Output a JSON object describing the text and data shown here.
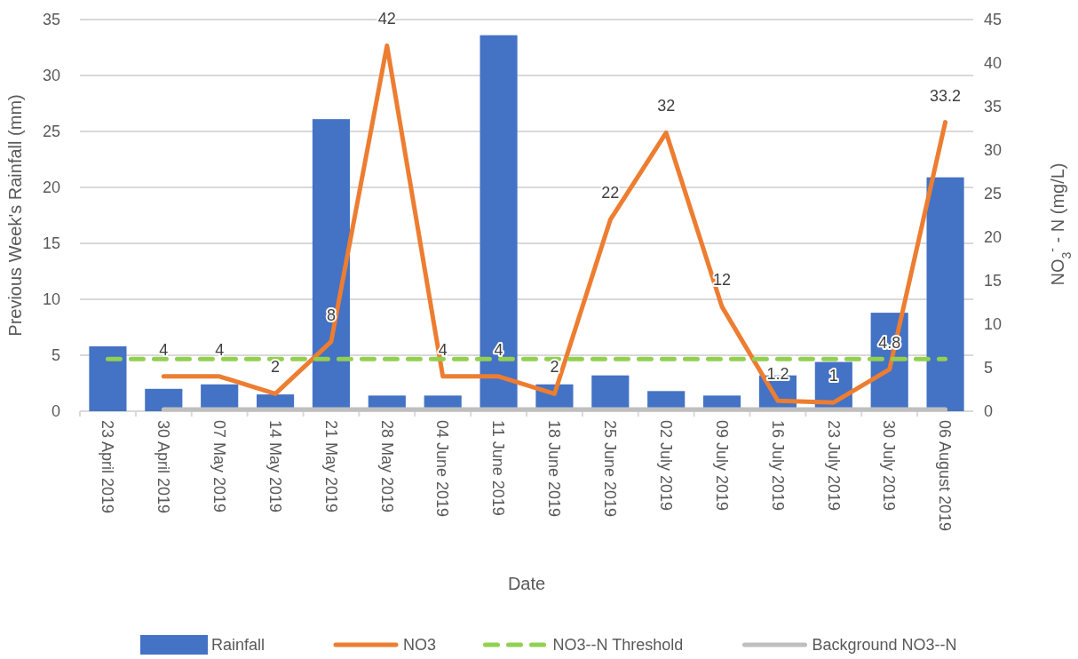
{
  "chart_data": {
    "type": "bar",
    "xlabel": "Date",
    "ylabel": "Previous Week's Rainfall (mm)",
    "y2label": "NO$_{3}$$^{-}$ - N (mg/L)",
    "categories": [
      "23 April 2019",
      "30 April 2019",
      "07 May 2019",
      "14 May 2019",
      "21 May 2019",
      "28 May 2019",
      "04 June 2019",
      "11 June 2019",
      "18 June 2019",
      "25 June 2019",
      "02 July 2019",
      "09 July 2019",
      "16 July 2019",
      "23 July 2019",
      "30 July 2019",
      "06 August 2019"
    ],
    "series": [
      {
        "name": "Rainfall",
        "color": "#4472c4",
        "values": [
          5.8,
          2.0,
          2.4,
          1.5,
          26.1,
          1.4,
          1.4,
          33.6,
          2.4,
          3.2,
          1.8,
          1.4,
          3.2,
          4.4,
          8.8,
          20.9
        ]
      },
      {
        "name": "NO3",
        "type": "line",
        "axis": "y2",
        "color": "#ed7d31",
        "line_style": "solid",
        "values": [
          null,
          4,
          4,
          2,
          8,
          42,
          4,
          4,
          2,
          22,
          32,
          12,
          1.2,
          1,
          4.8,
          33.2
        ],
        "value_labels": [
          null,
          "4",
          "4",
          "2",
          "8",
          "42",
          "4",
          "4",
          "2",
          "22",
          "32",
          "12",
          "1.2",
          "1",
          "4.8",
          "33.2"
        ]
      },
      {
        "name": "NO3--N Threshold",
        "type": "line",
        "axis": "y2",
        "color": "#92d050",
        "line_style": "dashed",
        "values": [
          6,
          6,
          6,
          6,
          6,
          6,
          6,
          6,
          6,
          6,
          6,
          6,
          6,
          6,
          6,
          6
        ]
      },
      {
        "name": "Background NO3--N",
        "type": "line",
        "axis": "y2",
        "color": "#bfbfbf",
        "line_style": "solid",
        "values": [
          null,
          0.2,
          0.2,
          0.2,
          0.2,
          0.2,
          0.2,
          0.2,
          0.2,
          0.2,
          0.2,
          0.2,
          0.2,
          0.2,
          0.2,
          0.2
        ]
      }
    ],
    "ylim": [
      0,
      35
    ],
    "yticks": [
      0,
      5,
      10,
      15,
      20,
      25,
      30,
      35
    ],
    "y2lim": [
      0,
      45
    ],
    "y2ticks": [
      0,
      5,
      10,
      15,
      20,
      25,
      30,
      35,
      40,
      45
    ],
    "grid": "y",
    "legend": "bottom"
  }
}
